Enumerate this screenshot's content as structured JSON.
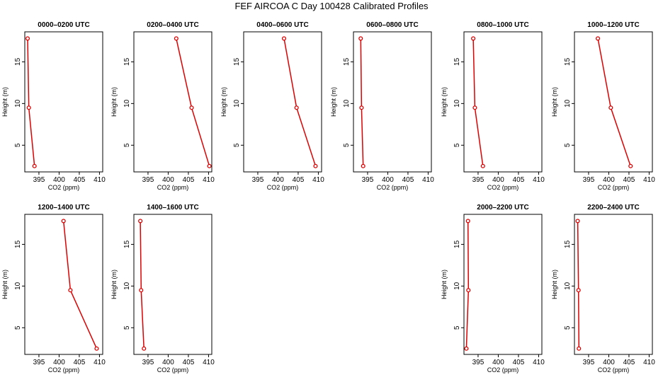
{
  "title": "FEF AIRCOA C  Day 100428  Calibrated Profiles",
  "colors": {
    "series": "#dd0000",
    "axis": "#000000"
  },
  "chart_data": {
    "type": "line",
    "xlabel": "CO2 (ppm)",
    "ylabel": "Height (m)",
    "xlim": [
      391.5,
      410.8
    ],
    "ylim": [
      1.8,
      18.6
    ],
    "xticks": [
      395,
      400,
      405,
      410
    ],
    "yticks": [
      5,
      10,
      15
    ],
    "panels": [
      {
        "title": "0000–0200 UTC",
        "x": [
          392.2,
          392.5,
          393.9
        ],
        "y": [
          17.8,
          9.5,
          2.5
        ]
      },
      {
        "title": "0200–0400 UTC",
        "x": [
          402.0,
          405.8,
          410.2
        ],
        "y": [
          17.8,
          9.5,
          2.5
        ]
      },
      {
        "title": "0400–0600 UTC",
        "x": [
          401.5,
          404.6,
          409.3
        ],
        "y": [
          17.8,
          9.5,
          2.5
        ]
      },
      {
        "title": "0600–0800 UTC",
        "x": [
          393.3,
          393.5,
          393.9
        ],
        "y": [
          17.8,
          9.5,
          2.5
        ]
      },
      {
        "title": "0800–1000 UTC",
        "x": [
          393.8,
          394.2,
          396.2
        ],
        "y": [
          17.8,
          9.5,
          2.5
        ]
      },
      {
        "title": "1000–1200 UTC",
        "x": [
          397.3,
          400.5,
          405.4
        ],
        "y": [
          17.8,
          9.5,
          2.5
        ]
      },
      {
        "title": "1200–1400 UTC",
        "x": [
          401.1,
          402.8,
          409.3
        ],
        "y": [
          17.8,
          9.5,
          2.5
        ]
      },
      {
        "title": "1400–1600 UTC",
        "x": [
          393.1,
          393.3,
          394.0
        ],
        "y": [
          17.8,
          9.5,
          2.5
        ]
      },
      {
        "title": "2000–2200 UTC",
        "x": [
          392.5,
          392.6,
          392.1
        ],
        "y": [
          17.8,
          9.5,
          2.5
        ]
      },
      {
        "title": "2200–2400 UTC",
        "x": [
          392.3,
          392.5,
          392.6
        ],
        "y": [
          17.8,
          9.5,
          2.5
        ]
      }
    ]
  }
}
